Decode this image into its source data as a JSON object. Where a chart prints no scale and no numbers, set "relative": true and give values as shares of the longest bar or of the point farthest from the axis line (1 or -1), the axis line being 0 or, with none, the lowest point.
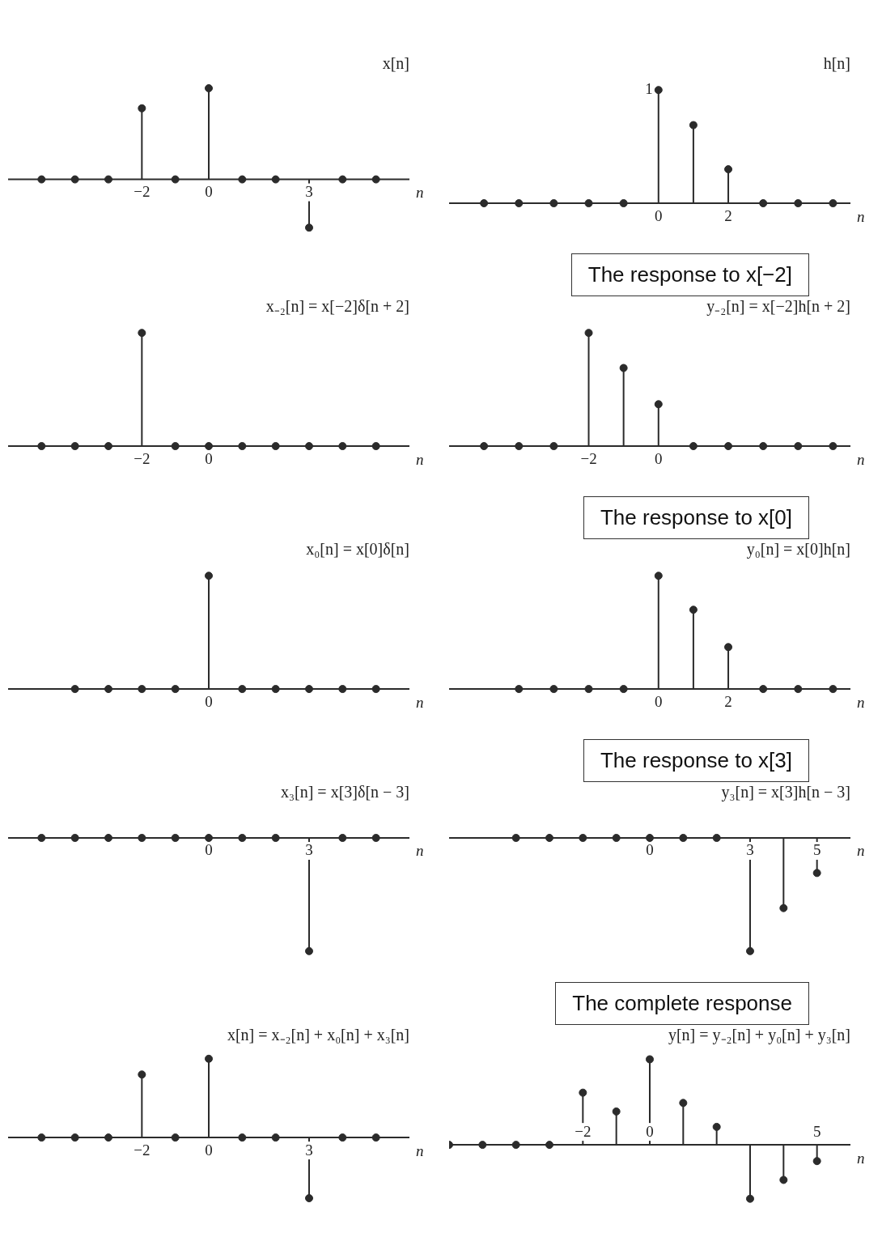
{
  "chart_data": [
    {
      "type": "lollipop",
      "title": "x[n]",
      "xlabel": "n",
      "relative": true,
      "color": "#2b2b2b",
      "marker": "circle",
      "xlim": [
        -6,
        6
      ],
      "xticks": [
        -2,
        0,
        3
      ],
      "x": [
        -5,
        -4,
        -3,
        -2,
        -1,
        0,
        1,
        2,
        3,
        4,
        5
      ],
      "values": [
        0,
        0,
        0,
        0.78,
        0,
        1,
        0,
        0,
        -0.53,
        0,
        0
      ]
    },
    {
      "type": "lollipop",
      "title": "h[n]",
      "xlabel": "n",
      "relative": true,
      "color": "#2b2b2b",
      "marker": "circle",
      "xlim": [
        -6,
        5.5
      ],
      "xticks": [
        0,
        2
      ],
      "annotations": [
        {
          "text": "1",
          "x": 0,
          "y": 1
        }
      ],
      "x": [
        -5,
        -4,
        -3,
        -2,
        -1,
        0,
        1,
        2,
        3,
        4,
        5
      ],
      "values": [
        0,
        0,
        0,
        0,
        0,
        1,
        0.69,
        0.3,
        0,
        0,
        0
      ]
    },
    {
      "type": "lollipop",
      "title": "x₋₂[n] = x[−2]δ[n + 2]",
      "xlabel": "n",
      "relative": true,
      "color": "#2b2b2b",
      "marker": "circle",
      "xlim": [
        -6,
        6
      ],
      "xticks": [
        -2,
        0
      ],
      "x": [
        -5,
        -4,
        -3,
        -2,
        -1,
        0,
        1,
        2,
        3,
        4,
        5
      ],
      "values": [
        0,
        0,
        0,
        1,
        0,
        0,
        0,
        0,
        0,
        0,
        0
      ]
    },
    {
      "type": "lollipop",
      "title": "y₋₂[n] = x[−2]h[n + 2]",
      "xlabel": "n",
      "relative": true,
      "color": "#2b2b2b",
      "marker": "circle",
      "xlim": [
        -6,
        5.5
      ],
      "xticks": [
        -2,
        0
      ],
      "subtitle": "The response to x[−2]",
      "x": [
        -5,
        -4,
        -3,
        -2,
        -1,
        0,
        1,
        2,
        3,
        4,
        5
      ],
      "values": [
        0,
        0,
        0,
        1,
        0.69,
        0.37,
        0,
        0,
        0,
        0,
        0
      ]
    },
    {
      "type": "lollipop",
      "title": "x₀[n] = x[0]δ[n]",
      "xlabel": "n",
      "relative": true,
      "color": "#2b2b2b",
      "marker": "circle",
      "xlim": [
        -6,
        6
      ],
      "annotations": [
        "0"
      ],
      "x": [
        -4,
        -3,
        -2,
        -1,
        0,
        1,
        2,
        3,
        4,
        5
      ],
      "values": [
        0,
        0,
        0,
        0,
        1,
        0,
        0,
        0,
        0,
        0
      ]
    },
    {
      "type": "lollipop",
      "title": "y₀[n] = x[0]h[n]",
      "xlabel": "n",
      "relative": true,
      "color": "#2b2b2b",
      "marker": "circle",
      "xlim": [
        -6,
        5.5
      ],
      "xticks": [
        0,
        2
      ],
      "subtitle": "The response to x[0]",
      "x": [
        -4,
        -3,
        -2,
        -1,
        0,
        1,
        2,
        3,
        4,
        5
      ],
      "values": [
        0,
        0,
        0,
        0,
        1,
        0.7,
        0.37,
        0,
        0,
        0
      ]
    },
    {
      "type": "lollipop",
      "title": "x₃[n] = x[3]δ[n − 3]",
      "xlabel": "n",
      "relative": true,
      "color": "#2b2b2b",
      "marker": "circle",
      "xlim": [
        -6,
        6
      ],
      "xticks": [
        0,
        3
      ],
      "x": [
        -5,
        -4,
        -3,
        -2,
        -1,
        0,
        1,
        2,
        3,
        4,
        5
      ],
      "values": [
        0,
        0,
        0,
        0,
        0,
        0,
        0,
        0,
        -1,
        0,
        0
      ]
    },
    {
      "type": "lollipop",
      "title": "y₃[n] = x[3]h[n − 3]",
      "xlabel": "n",
      "relative": true,
      "color": "#2b2b2b",
      "marker": "circle",
      "xlim": [
        -6,
        6
      ],
      "xticks": [
        0,
        3,
        5
      ],
      "subtitle": "The response to x[3]",
      "x": [
        -4,
        -3,
        -2,
        -1,
        0,
        1,
        2,
        3,
        4,
        5
      ],
      "values": [
        0,
        0,
        0,
        0,
        0,
        0,
        0,
        -1,
        -0.62,
        -0.31
      ]
    },
    {
      "type": "lollipop",
      "title": "x[n] = x₋₂[n] + x₀[n] + x₃[n]",
      "xlabel": "n",
      "relative": true,
      "color": "#2b2b2b",
      "marker": "circle",
      "xlim": [
        -6,
        6
      ],
      "xticks": [
        -2,
        0,
        3
      ],
      "x": [
        -5,
        -4,
        -3,
        -2,
        -1,
        0,
        1,
        2,
        3,
        4,
        5
      ],
      "values": [
        0,
        0,
        0,
        0.8,
        0,
        1,
        0,
        0,
        -0.77,
        0,
        0
      ]
    },
    {
      "type": "lollipop",
      "title": "y[n] = y₋₂[n] + y₀[n] + y₃[n]",
      "xlabel": "n",
      "relative": true,
      "color": "#2b2b2b",
      "marker": "circle",
      "xlim": [
        -6,
        6
      ],
      "xticks": [
        -2,
        0,
        5
      ],
      "subtitle": "The complete response",
      "x": [
        -6,
        -5,
        -4,
        -3,
        -2,
        -1,
        0,
        1,
        2,
        3,
        4,
        5
      ],
      "values": [
        0,
        0,
        0,
        0,
        0.61,
        0.39,
        1,
        0.49,
        0.21,
        -0.63,
        -0.41,
        -0.19
      ]
    }
  ]
}
